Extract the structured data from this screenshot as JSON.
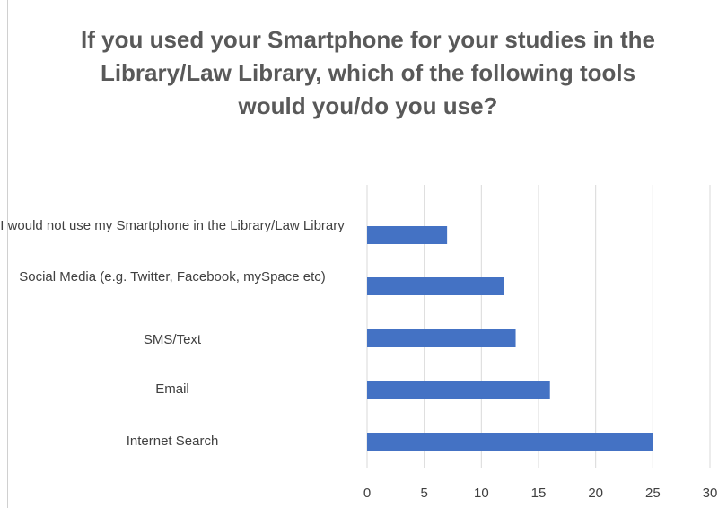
{
  "chart_data": {
    "type": "bar",
    "orientation": "horizontal",
    "title": "If you used your Smartphone for your studies in the Library/Law Library, which of the following tools would you/do you use?",
    "categories": [
      "I would not use my Smartphone in the Library/Law Library",
      "Social Media (e.g. Twitter, Facebook, mySpace etc)",
      "SMS/Text",
      "Email",
      "Internet Search"
    ],
    "values": [
      7,
      12,
      13,
      16,
      25
    ],
    "xlim": [
      0,
      30
    ],
    "xticks": [
      0,
      5,
      10,
      15,
      20,
      25,
      30
    ],
    "xlabel": "",
    "ylabel": "",
    "grid": true,
    "legend": "none",
    "bar_color": "#4472C4",
    "gridline_color": "#d9d9d9"
  }
}
